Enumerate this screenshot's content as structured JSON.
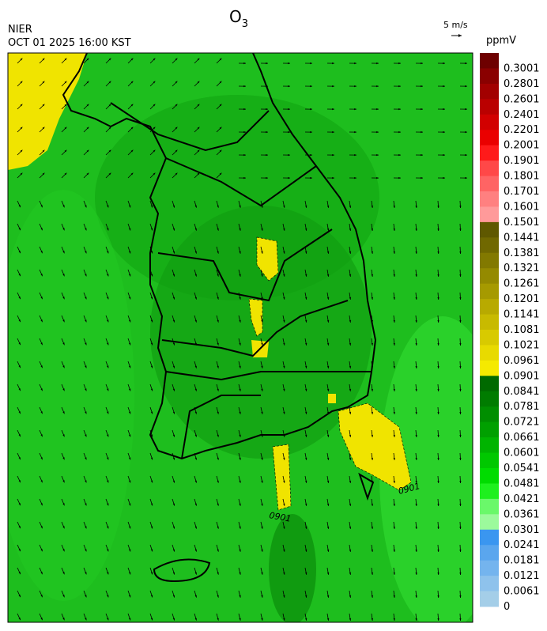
{
  "header": {
    "agency": "NIER",
    "timestamp": "OCT 01 2025 16:00 KST",
    "title_main": "O",
    "title_sub": "3",
    "wind_scale": "5 m/s",
    "unit": "ppmV"
  },
  "map": {
    "contour_labels": [
      "0901",
      "0901"
    ]
  },
  "colorbar": {
    "levels": [
      {
        "label": "0.3001",
        "color": "#6e0000"
      },
      {
        "label": "0.2801",
        "color": "#8a0000"
      },
      {
        "label": "0.2601",
        "color": "#a20000"
      },
      {
        "label": "0.2401",
        "color": "#ba0000"
      },
      {
        "label": "0.2201",
        "color": "#d20000"
      },
      {
        "label": "0.2001",
        "color": "#ea0000"
      },
      {
        "label": "0.1901",
        "color": "#ff1a1a"
      },
      {
        "label": "0.1801",
        "color": "#ff4848"
      },
      {
        "label": "0.1701",
        "color": "#ff6464"
      },
      {
        "label": "0.1601",
        "color": "#ff8080"
      },
      {
        "label": "0.1501",
        "color": "#ff9a9a"
      },
      {
        "label": "0.1441",
        "color": "#5f5800"
      },
      {
        "label": "0.1381",
        "color": "#706800"
      },
      {
        "label": "0.1321",
        "color": "#827900"
      },
      {
        "label": "0.1261",
        "color": "#948a00"
      },
      {
        "label": "0.1201",
        "color": "#a69a00"
      },
      {
        "label": "0.1141",
        "color": "#b8aa00"
      },
      {
        "label": "0.1081",
        "color": "#c8ba00"
      },
      {
        "label": "0.1021",
        "color": "#d8ca00"
      },
      {
        "label": "0.0961",
        "color": "#e8da00"
      },
      {
        "label": "0.0901",
        "color": "#f5ea00"
      },
      {
        "label": "0.0841",
        "color": "#006a00"
      },
      {
        "label": "0.0781",
        "color": "#007c00"
      },
      {
        "label": "0.0721",
        "color": "#008e00"
      },
      {
        "label": "0.0661",
        "color": "#00a000"
      },
      {
        "label": "0.0601",
        "color": "#00b400"
      },
      {
        "label": "0.0541",
        "color": "#00c800"
      },
      {
        "label": "0.0481",
        "color": "#00dc00"
      },
      {
        "label": "0.0421",
        "color": "#1ef01e"
      },
      {
        "label": "0.0361",
        "color": "#6af86a"
      },
      {
        "label": "0.0301",
        "color": "#9cfa9c"
      },
      {
        "label": "0.0241",
        "color": "#3a96f0"
      },
      {
        "label": "0.0181",
        "color": "#5aa6ee"
      },
      {
        "label": "0.0121",
        "color": "#74b4ee"
      },
      {
        "label": "0.0061",
        "color": "#8ec2ec"
      },
      {
        "label": "0",
        "color": "#a4cee8"
      }
    ]
  }
}
